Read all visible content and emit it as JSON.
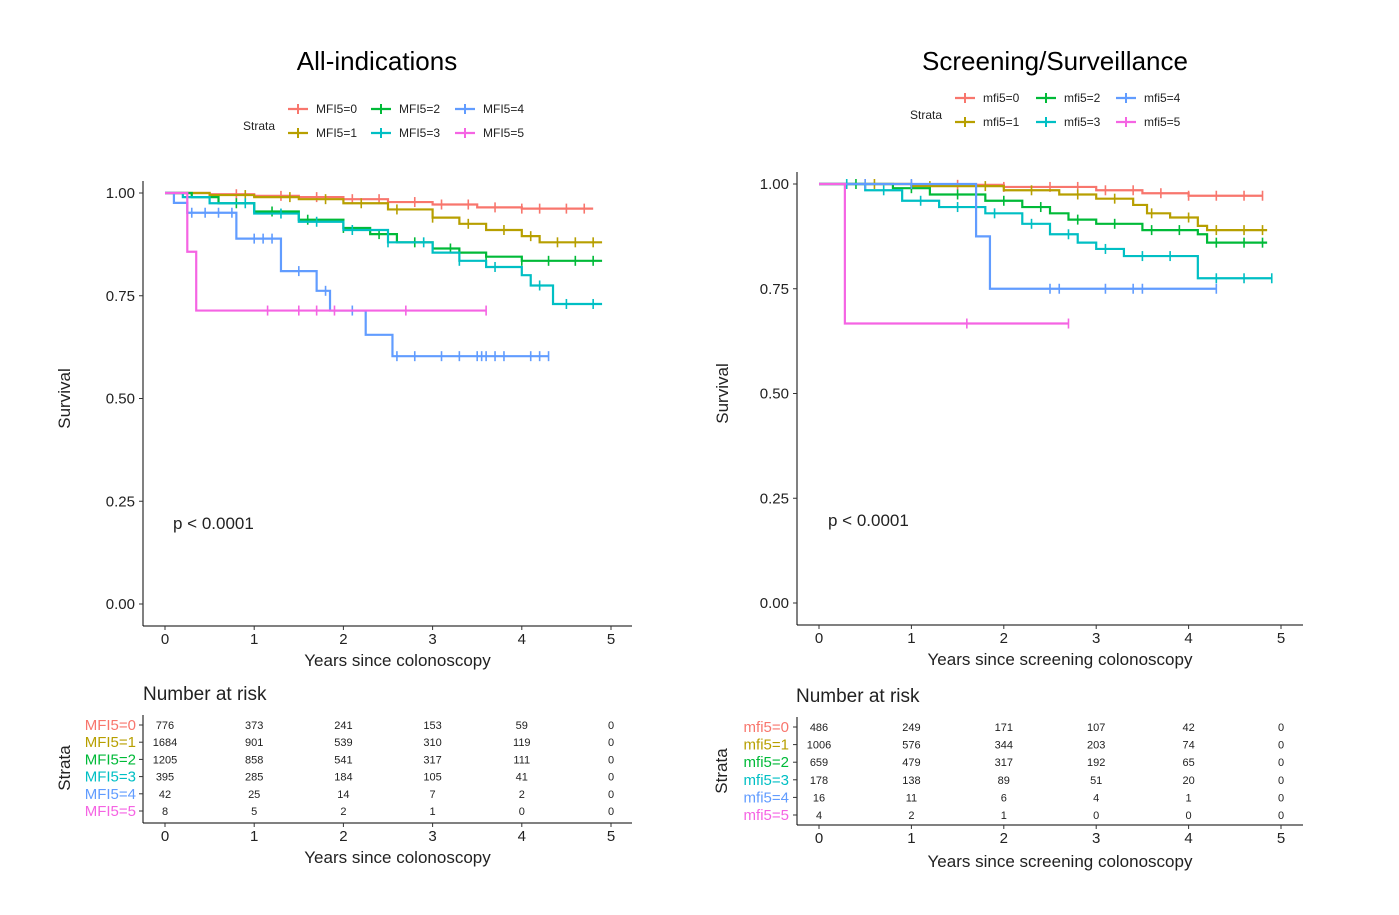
{
  "chart_data": [
    {
      "type": "line",
      "subtype": "kaplan-meier",
      "title": "All-indications",
      "xlabel": "Years since colonoscopy",
      "ylabel": "Survival",
      "xlim": [
        0,
        5
      ],
      "ylim": [
        0,
        1
      ],
      "xticks": [
        "0",
        "1",
        "2",
        "3",
        "4",
        "5"
      ],
      "yticks": [
        "0.00",
        "0.25",
        "0.50",
        "0.75",
        "1.00"
      ],
      "p_value": "p < 0.0001",
      "legend_title": "Strata",
      "risk_title": "Number at risk",
      "risk_ylabel": "Strata",
      "risk_xlabel": "Years since colonoscopy",
      "series": [
        {
          "name": "MFI5=0",
          "color": "#f8766d",
          "steps": [
            [
              0,
              1.0
            ],
            [
              0.5,
              0.997
            ],
            [
              1,
              0.993
            ],
            [
              1.5,
              0.99
            ],
            [
              2,
              0.985
            ],
            [
              2.5,
              0.978
            ],
            [
              3,
              0.972
            ],
            [
              3.5,
              0.965
            ],
            [
              4,
              0.962
            ],
            [
              4.8,
              0.962
            ]
          ],
          "censor": [
            0.8,
            1.3,
            1.7,
            2.1,
            2.4,
            2.8,
            3.1,
            3.4,
            3.7,
            4.0,
            4.2,
            4.5,
            4.7
          ],
          "risk": [
            "776",
            "373",
            "241",
            "153",
            "59",
            "0"
          ]
        },
        {
          "name": "MFI5=1",
          "color": "#b79f00",
          "steps": [
            [
              0,
              1.0
            ],
            [
              0.5,
              0.995
            ],
            [
              1,
              0.99
            ],
            [
              1.5,
              0.985
            ],
            [
              2,
              0.975
            ],
            [
              2.5,
              0.96
            ],
            [
              3,
              0.94
            ],
            [
              3.3,
              0.925
            ],
            [
              3.6,
              0.91
            ],
            [
              4,
              0.895
            ],
            [
              4.2,
              0.88
            ],
            [
              4.9,
              0.88
            ]
          ],
          "censor": [
            0.9,
            1.4,
            1.8,
            2.2,
            2.6,
            3.0,
            3.4,
            3.8,
            4.1,
            4.4,
            4.6,
            4.8
          ],
          "risk": [
            "1684",
            "901",
            "539",
            "310",
            "119",
            "0"
          ]
        },
        {
          "name": "MFI5=2",
          "color": "#00ba38",
          "steps": [
            [
              0,
              1.0
            ],
            [
              0.3,
              0.99
            ],
            [
              0.6,
              0.975
            ],
            [
              1,
              0.955
            ],
            [
              1.5,
              0.935
            ],
            [
              2,
              0.915
            ],
            [
              2.3,
              0.9
            ],
            [
              2.6,
              0.88
            ],
            [
              3,
              0.865
            ],
            [
              3.3,
              0.855
            ],
            [
              3.6,
              0.845
            ],
            [
              4,
              0.835
            ],
            [
              4.9,
              0.835
            ]
          ],
          "censor": [
            0.8,
            1.2,
            1.6,
            2.0,
            2.4,
            2.8,
            3.2,
            3.6,
            4.0,
            4.3,
            4.6,
            4.8
          ],
          "risk": [
            "1205",
            "858",
            "541",
            "317",
            "111",
            "0"
          ]
        },
        {
          "name": "MFI5=3",
          "color": "#00bfc4",
          "steps": [
            [
              0,
              1.0
            ],
            [
              0.2,
              0.99
            ],
            [
              0.5,
              0.975
            ],
            [
              1,
              0.95
            ],
            [
              1.5,
              0.93
            ],
            [
              2,
              0.91
            ],
            [
              2.5,
              0.88
            ],
            [
              3,
              0.855
            ],
            [
              3.3,
              0.835
            ],
            [
              3.6,
              0.82
            ],
            [
              4.0,
              0.8
            ],
            [
              4.1,
              0.775
            ],
            [
              4.35,
              0.73
            ],
            [
              4.9,
              0.73
            ]
          ],
          "censor": [
            0.9,
            1.3,
            1.7,
            2.1,
            2.5,
            2.9,
            3.3,
            3.7,
            4.2,
            4.5,
            4.8
          ],
          "risk": [
            "395",
            "285",
            "184",
            "105",
            "41",
            "0"
          ]
        },
        {
          "name": "MFI5=4",
          "color": "#619cff",
          "steps": [
            [
              0,
              1.0
            ],
            [
              0.1,
              0.976
            ],
            [
              0.25,
              0.952
            ],
            [
              0.8,
              0.889
            ],
            [
              1.3,
              0.81
            ],
            [
              1.7,
              0.762
            ],
            [
              1.85,
              0.714
            ],
            [
              2.25,
              0.655
            ],
            [
              2.55,
              0.603
            ],
            [
              4.3,
              0.603
            ]
          ],
          "censor": [
            0.3,
            0.45,
            0.6,
            0.75,
            1.0,
            1.1,
            1.2,
            1.5,
            1.8,
            2.1,
            2.6,
            2.8,
            3.1,
            3.3,
            3.5,
            3.55,
            3.6,
            3.7,
            3.8,
            4.1,
            4.2,
            4.3
          ],
          "risk": [
            "42",
            "25",
            "14",
            "7",
            "2",
            "0"
          ]
        },
        {
          "name": "MFI5=5",
          "color": "#f564e3",
          "steps": [
            [
              0,
              1.0
            ],
            [
              0.25,
              0.857
            ],
            [
              0.35,
              0.714
            ],
            [
              3.6,
              0.714
            ]
          ],
          "censor": [
            1.15,
            1.5,
            1.7,
            1.9,
            2.7,
            3.6
          ],
          "risk": [
            "8",
            "5",
            "2",
            "1",
            "0",
            "0"
          ]
        }
      ]
    },
    {
      "type": "line",
      "subtype": "kaplan-meier",
      "title": "Screening/Surveillance",
      "xlabel": "Years since screening colonoscopy",
      "ylabel": "Survival",
      "xlim": [
        0,
        5
      ],
      "ylim": [
        0,
        1
      ],
      "xticks": [
        "0",
        "1",
        "2",
        "3",
        "4",
        "5"
      ],
      "yticks": [
        "0.00",
        "0.25",
        "0.50",
        "0.75",
        "1.00"
      ],
      "p_value": "p < 0.0001",
      "legend_title": "Strata",
      "risk_title": "Number at risk",
      "risk_ylabel": "Strata",
      "risk_xlabel": "Years since screening colonoscopy",
      "series": [
        {
          "name": "mfi5=0",
          "color": "#f8766d",
          "steps": [
            [
              0,
              1.0
            ],
            [
              1,
              0.998
            ],
            [
              2,
              0.993
            ],
            [
              3,
              0.985
            ],
            [
              3.5,
              0.978
            ],
            [
              4,
              0.972
            ],
            [
              4.8,
              0.972
            ]
          ],
          "censor": [
            0.5,
            1.0,
            1.5,
            2.0,
            2.5,
            2.8,
            3.1,
            3.4,
            3.7,
            4.0,
            4.3,
            4.6,
            4.8
          ],
          "risk": [
            "486",
            "249",
            "171",
            "107",
            "42",
            "0"
          ]
        },
        {
          "name": "mfi5=1",
          "color": "#b79f00",
          "steps": [
            [
              0,
              1.0
            ],
            [
              1,
              0.995
            ],
            [
              2,
              0.985
            ],
            [
              2.6,
              0.975
            ],
            [
              3.0,
              0.965
            ],
            [
              3.4,
              0.95
            ],
            [
              3.55,
              0.93
            ],
            [
              3.8,
              0.92
            ],
            [
              4.1,
              0.9
            ],
            [
              4.2,
              0.89
            ],
            [
              4.85,
              0.89
            ]
          ],
          "censor": [
            0.6,
            1.2,
            1.8,
            2.3,
            2.8,
            3.2,
            3.6,
            4.0,
            4.3,
            4.6,
            4.8
          ],
          "risk": [
            "1006",
            "576",
            "344",
            "203",
            "74",
            "0"
          ]
        },
        {
          "name": "mfi5=2",
          "color": "#00ba38",
          "steps": [
            [
              0,
              1.0
            ],
            [
              0.8,
              0.99
            ],
            [
              1.2,
              0.975
            ],
            [
              1.8,
              0.96
            ],
            [
              2.2,
              0.945
            ],
            [
              2.5,
              0.93
            ],
            [
              2.7,
              0.915
            ],
            [
              3.0,
              0.905
            ],
            [
              3.5,
              0.89
            ],
            [
              4.1,
              0.88
            ],
            [
              4.2,
              0.86
            ],
            [
              4.85,
              0.86
            ]
          ],
          "censor": [
            0.4,
            1.0,
            1.5,
            2.0,
            2.4,
            2.8,
            3.2,
            3.6,
            3.9,
            4.3,
            4.6,
            4.8
          ],
          "risk": [
            "659",
            "479",
            "317",
            "192",
            "65",
            "0"
          ]
        },
        {
          "name": "mfi5=3",
          "color": "#00bfc4",
          "steps": [
            [
              0,
              1.0
            ],
            [
              0.5,
              0.985
            ],
            [
              0.9,
              0.96
            ],
            [
              1.3,
              0.945
            ],
            [
              1.8,
              0.93
            ],
            [
              2.2,
              0.905
            ],
            [
              2.5,
              0.88
            ],
            [
              2.8,
              0.86
            ],
            [
              3.0,
              0.845
            ],
            [
              3.3,
              0.828
            ],
            [
              4.05,
              0.828
            ],
            [
              4.1,
              0.775
            ],
            [
              4.9,
              0.775
            ]
          ],
          "censor": [
            0.3,
            0.7,
            1.1,
            1.5,
            1.9,
            2.3,
            2.7,
            3.1,
            3.5,
            3.8,
            4.3,
            4.6,
            4.9
          ],
          "risk": [
            "178",
            "138",
            "89",
            "51",
            "20",
            "0"
          ]
        },
        {
          "name": "mfi5=4",
          "color": "#619cff",
          "steps": [
            [
              0,
              1.0
            ],
            [
              1.7,
              0.875
            ],
            [
              1.85,
              0.75
            ],
            [
              4.3,
              0.75
            ]
          ],
          "censor": [
            0.5,
            1.0,
            2.5,
            2.6,
            3.1,
            3.4,
            3.5,
            4.3
          ],
          "risk": [
            "16",
            "11",
            "6",
            "4",
            "1",
            "0"
          ]
        },
        {
          "name": "mfi5=5",
          "color": "#f564e3",
          "steps": [
            [
              0,
              1.0
            ],
            [
              0.28,
              0.667
            ],
            [
              2.7,
              0.667
            ]
          ],
          "censor": [
            1.6,
            2.7
          ],
          "risk": [
            "4",
            "2",
            "1",
            "0",
            "0",
            "0"
          ]
        }
      ]
    }
  ]
}
